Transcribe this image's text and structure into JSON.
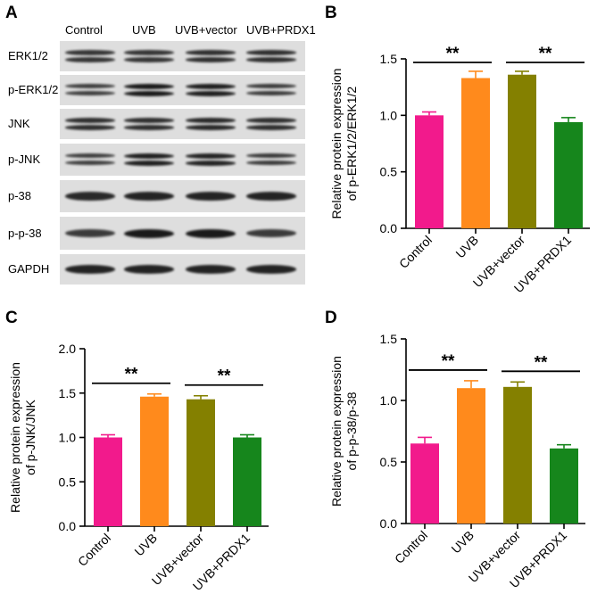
{
  "panels": {
    "A": "A",
    "B": "B",
    "C": "C",
    "D": "D"
  },
  "blot": {
    "lanes": [
      "Control",
      "UVB",
      "UVB+vector",
      "UVB+PRDX1"
    ],
    "proteins": [
      "ERK1/2",
      "p-ERK1/2",
      "JNK",
      "p-JNK",
      "p-38",
      "p-p-38",
      "GAPDH"
    ],
    "band_intensity": [
      [
        0.75,
        0.75,
        0.8,
        0.8
      ],
      [
        0.65,
        1.0,
        0.95,
        0.7
      ],
      [
        0.8,
        0.8,
        0.85,
        0.8
      ],
      [
        0.65,
        0.95,
        0.9,
        0.7
      ],
      [
        0.85,
        0.9,
        0.9,
        0.9
      ],
      [
        0.7,
        1.0,
        1.0,
        0.7
      ],
      [
        0.9,
        0.9,
        0.9,
        0.9
      ]
    ]
  },
  "chart_data": [
    {
      "panel": "B",
      "type": "bar",
      "categories": [
        "Control",
        "UVB",
        "UVB+vector",
        "UVB+PRDX1"
      ],
      "values": [
        1.0,
        1.33,
        1.36,
        0.94
      ],
      "errors": [
        0.03,
        0.06,
        0.03,
        0.04
      ],
      "colors": [
        "#f21a8c",
        "#ff8a1c",
        "#848000",
        "#16861c"
      ],
      "ylabel_lines": [
        "Relative protein expression",
        "of p-ERK1/2/ERK1/2"
      ],
      "ylim": [
        0,
        1.5
      ],
      "yticks": [
        "0.0",
        "0.5",
        "1.0",
        "1.5"
      ],
      "significance": [
        {
          "from": 0,
          "to": 1,
          "label": "**"
        },
        {
          "from": 2,
          "to": 3,
          "label": "**"
        }
      ]
    },
    {
      "panel": "C",
      "type": "bar",
      "categories": [
        "Control",
        "UVB",
        "UVB+vector",
        "UVB+PRDX1"
      ],
      "values": [
        1.0,
        1.46,
        1.43,
        1.0
      ],
      "errors": [
        0.03,
        0.03,
        0.04,
        0.03
      ],
      "colors": [
        "#f21a8c",
        "#ff8a1c",
        "#848000",
        "#16861c"
      ],
      "ylabel_lines": [
        "Relative protein expression",
        "of p-JNK/JNK"
      ],
      "ylim": [
        0,
        2.0
      ],
      "yticks": [
        "0.0",
        "0.5",
        "1.0",
        "1.5",
        "2.0"
      ],
      "significance": [
        {
          "from": 0,
          "to": 1,
          "label": "**"
        },
        {
          "from": 2,
          "to": 3,
          "label": "**"
        }
      ]
    },
    {
      "panel": "D",
      "type": "bar",
      "categories": [
        "Control",
        "UVB",
        "UVB+vector",
        "UVB+PRDX1"
      ],
      "values": [
        0.65,
        1.1,
        1.11,
        0.61
      ],
      "errors": [
        0.05,
        0.06,
        0.04,
        0.03
      ],
      "colors": [
        "#f21a8c",
        "#ff8a1c",
        "#848000",
        "#16861c"
      ],
      "ylabel_lines": [
        "Relative protein expression",
        "of p-p-38/p-38"
      ],
      "ylim": [
        0,
        1.5
      ],
      "yticks": [
        "0.0",
        "0.5",
        "1.0",
        "1.5"
      ],
      "significance": [
        {
          "from": 0,
          "to": 1,
          "label": "**"
        },
        {
          "from": 2,
          "to": 3,
          "label": "**"
        }
      ]
    }
  ]
}
